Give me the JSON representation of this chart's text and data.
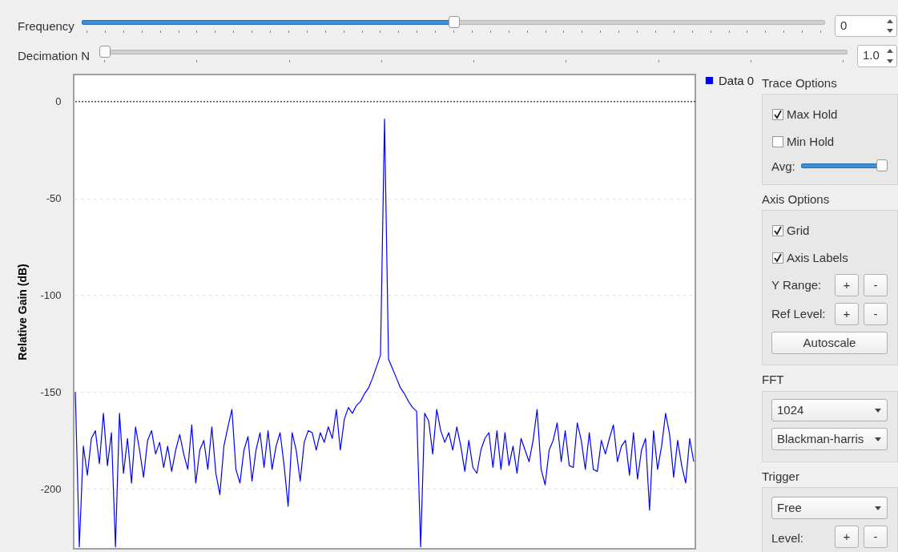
{
  "chart_data": {
    "type": "line",
    "ylabel": "Relative Gain (dB)",
    "ylim": [
      -231,
      14
    ],
    "yticks": [
      0,
      -50,
      -100,
      -150,
      -200
    ],
    "grid": "y",
    "legend": "top right",
    "categories": [
      null,
      null,
      null,
      null,
      null,
      null,
      null,
      null,
      null,
      null,
      null,
      null,
      null,
      null,
      null,
      null,
      null,
      null,
      null,
      null,
      null,
      null,
      null,
      null,
      null,
      null,
      null,
      null,
      null,
      null,
      null,
      null,
      null,
      null,
      null,
      null,
      null,
      null,
      null,
      null,
      null,
      null,
      null,
      null,
      null,
      null,
      null,
      null,
      null,
      null,
      null,
      null,
      null,
      null,
      null,
      null,
      null,
      null,
      null,
      null,
      null,
      null,
      null,
      null,
      null,
      null,
      null,
      null,
      null,
      null,
      null,
      null,
      null,
      null,
      null,
      null,
      null,
      null,
      null,
      null,
      null,
      null,
      null,
      null,
      null,
      null,
      null,
      null,
      null,
      null,
      null,
      null,
      null,
      null,
      null,
      null,
      null,
      null,
      null,
      null,
      null,
      null,
      null,
      null,
      null,
      null,
      null,
      null,
      null,
      null,
      null,
      null,
      null,
      null,
      null,
      null,
      null,
      null,
      null,
      null,
      null,
      null,
      null,
      null,
      null,
      null,
      null,
      null,
      null,
      null,
      null,
      null,
      null,
      null,
      null,
      null,
      null,
      null,
      null,
      null,
      null,
      null,
      null,
      null,
      null,
      null,
      null,
      null,
      null,
      null,
      null,
      null,
      null,
      null,
      null
    ],
    "ref_lines": [
      {
        "axis": "y",
        "value": 0,
        "color": "#000000",
        "line_style": "dotted"
      }
    ],
    "series": [
      {
        "name": "Data 0",
        "color": "#0000ff",
        "values": [
          -150,
          -230,
          -178,
          -193,
          -174,
          -170,
          -187,
          -161,
          -188,
          -171,
          -230,
          -161,
          -192,
          -174,
          -197,
          -168,
          -180,
          -194,
          -175,
          -170,
          -182,
          -176,
          -189,
          -178,
          -191,
          -180,
          -172,
          -182,
          -190,
          -167,
          -197,
          -180,
          -175,
          -190,
          -168,
          -192,
          -203,
          -178,
          -168,
          -159,
          -190,
          -197,
          -180,
          -173,
          -196,
          -180,
          -171,
          -189,
          -170,
          -190,
          -178,
          -171,
          -188,
          -209,
          -171,
          -180,
          -196,
          -176,
          -170,
          -171,
          -180,
          -171,
          -176,
          -168,
          -174,
          -159,
          -180,
          -164,
          -158,
          -161,
          -157,
          -155,
          -151,
          -148,
          -143,
          -137,
          -131,
          -9,
          -133,
          -138,
          -143,
          -148,
          -151,
          -155,
          -158,
          -160,
          -230,
          -161,
          -165,
          -182,
          -159,
          -170,
          -176,
          -171,
          -180,
          -168,
          -178,
          -191,
          -175,
          -189,
          -192,
          -180,
          -174,
          -171,
          -189,
          -170,
          -190,
          -171,
          -188,
          -178,
          -192,
          -174,
          -180,
          -186,
          -175,
          -159,
          -190,
          -198,
          -180,
          -175,
          -166,
          -186,
          -170,
          -188,
          -189,
          -166,
          -175,
          -190,
          -171,
          -190,
          -191,
          -175,
          -182,
          -174,
          -167,
          -186,
          -178,
          -175,
          -193,
          -171,
          -195,
          -180,
          -174,
          -211,
          -170,
          -190,
          -178,
          -161,
          -172,
          -194,
          -175,
          -188,
          -197,
          -174,
          -186
        ]
      }
    ],
    "annotations": [
      "Frequency",
      "0",
      "Decimation N",
      "1.0",
      "Trace Options",
      "Max Hold",
      "Min Hold",
      "Avg:",
      "Axis Options",
      "Grid",
      "Axis Labels",
      "Y Range:",
      "+",
      "-",
      "Ref Level:",
      "+",
      "-",
      "Autoscale",
      "FFT",
      "1024",
      "Blackman-harris",
      "Trigger",
      "Free",
      "Level:",
      "+",
      "-"
    ]
  }
}
